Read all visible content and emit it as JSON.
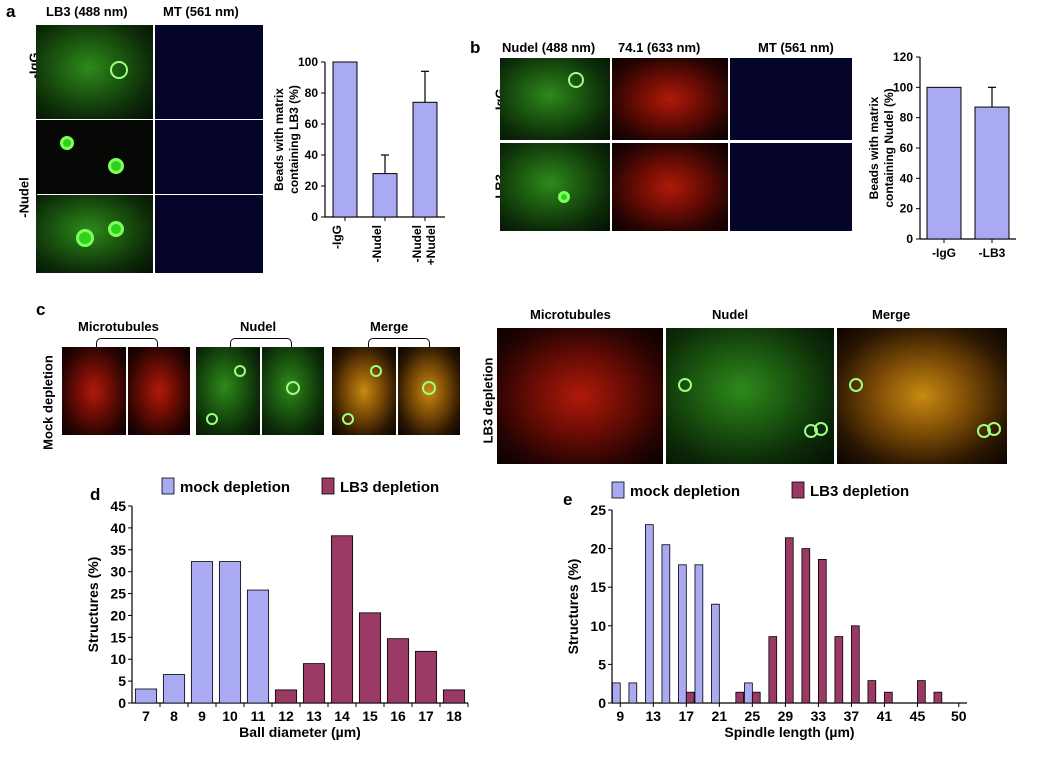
{
  "panel_a": {
    "letter": "a",
    "col_labels": [
      "LB3 (488 nm)",
      "MT (561 nm)"
    ],
    "row_labels": [
      "-IgG",
      "-Nudel"
    ]
  },
  "panel_b": {
    "letter": "b",
    "col_labels": [
      "Nudel (488 nm)",
      "74.1 (633 nm)",
      "MT (561 nm)"
    ],
    "row_labels": [
      "-IgG",
      "-LB3"
    ]
  },
  "panel_c": {
    "letter": "c",
    "left_col_labels": [
      "Microtubules",
      "Nudel",
      "Merge"
    ],
    "left_row_label": "Mock depletion",
    "right_col_labels": [
      "Microtubules",
      "Nudel",
      "Merge"
    ],
    "right_row_label": "LB3 depletion"
  },
  "panel_d": {
    "letter": "d"
  },
  "panel_e": {
    "letter": "e"
  },
  "colors": {
    "mock": "#aaaaf2",
    "lb3": "#9a3a64",
    "bar_a": "#aaaaf2"
  },
  "chart_data": [
    {
      "id": "a",
      "type": "bar",
      "categories": [
        "-IgG",
        "-Nudel",
        "-Nudel\n+Nudel"
      ],
      "values": [
        100,
        28,
        74
      ],
      "errors": [
        0,
        12,
        20
      ],
      "ylabel": "Beads with matrix\ncontaining LB3 (%)",
      "ylim": [
        0,
        100
      ],
      "yticks": [
        0,
        20,
        40,
        60,
        80,
        100
      ]
    },
    {
      "id": "b",
      "type": "bar",
      "categories": [
        "-IgG",
        "-LB3"
      ],
      "values": [
        100,
        87
      ],
      "errors": [
        0,
        13
      ],
      "ylabel": "Beads with matrix\ncontaining Nudel (%)",
      "ylim": [
        0,
        120
      ],
      "yticks": [
        0,
        20,
        40,
        60,
        80,
        100,
        120
      ]
    },
    {
      "id": "d",
      "type": "bar",
      "xlabel": "Ball diameter (µm)",
      "ylabel": "Structures (%)",
      "ylim": [
        0,
        45
      ],
      "yticks": [
        0,
        5,
        10,
        15,
        20,
        25,
        30,
        35,
        40,
        45
      ],
      "categories": [
        "7",
        "8",
        "9",
        "10",
        "11",
        "12",
        "13",
        "14",
        "15",
        "16",
        "17",
        "18"
      ],
      "legend": [
        "mock depletion",
        "LB3 depletion"
      ],
      "series": [
        {
          "name": "mock depletion",
          "values": [
            3.2,
            6.5,
            32.3,
            32.3,
            25.8,
            0,
            0,
            0,
            0,
            0,
            0,
            0
          ]
        },
        {
          "name": "LB3 depletion",
          "values": [
            0,
            0,
            0,
            0,
            0,
            3,
            9,
            38.2,
            20.6,
            14.7,
            11.8,
            3
          ]
        }
      ]
    },
    {
      "id": "e",
      "type": "bar",
      "xlabel": "Spindle length (µm)",
      "ylabel": "Structures (%)",
      "ylim": [
        0,
        25
      ],
      "yticks": [
        0,
        5,
        10,
        15,
        20,
        25
      ],
      "xticks": [
        "9",
        "13",
        "17",
        "21",
        "25",
        "29",
        "33",
        "37",
        "41",
        "45",
        "50"
      ],
      "x": [
        9,
        11,
        13,
        15,
        17,
        19,
        21,
        23,
        25,
        27,
        29,
        31,
        33,
        35,
        37,
        39,
        41,
        43,
        45,
        47,
        50
      ],
      "legend": [
        "mock depletion",
        "LB3 depletion"
      ],
      "series": [
        {
          "name": "mock depletion",
          "values": [
            2.6,
            2.6,
            23.1,
            20.5,
            17.9,
            17.9,
            12.8,
            0,
            2.6,
            0,
            0,
            0,
            0,
            0,
            0,
            0,
            0,
            0,
            0,
            0,
            0
          ]
        },
        {
          "name": "LB3 depletion",
          "values": [
            0,
            0,
            0,
            0,
            1.4,
            0,
            0,
            1.4,
            1.4,
            8.6,
            21.4,
            20,
            18.6,
            8.6,
            10,
            2.9,
            1.4,
            0,
            2.9,
            1.4,
            0
          ]
        }
      ]
    }
  ]
}
